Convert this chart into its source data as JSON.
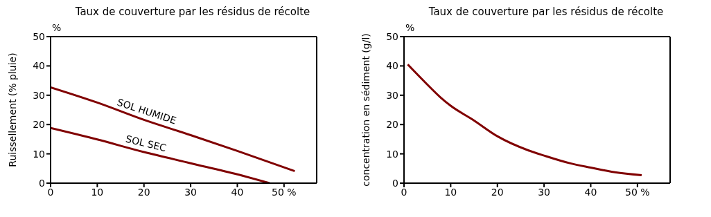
{
  "chart_data": [
    {
      "type": "line",
      "title": "Taux de couverture par les résidus de récolte",
      "ylabel": "Ruissellement (% pluie)",
      "annotations": [
        "%"
      ],
      "xlim": [
        0,
        57
      ],
      "xticks": [
        0,
        10,
        20,
        30,
        40,
        {
          "value": 50,
          "label": "50 %"
        }
      ],
      "ylim": [
        0,
        50
      ],
      "yticks": [
        0,
        10,
        20,
        30,
        40,
        50
      ],
      "series": [
        {
          "name": "SOL HUMIDE",
          "color": "#800000",
          "x": [
            0,
            10,
            20,
            30,
            40,
            52.3
          ],
          "values": [
            32.7,
            27.5,
            21.6,
            16.4,
            11,
            4.1
          ]
        },
        {
          "name": "SOL SEC",
          "color": "#800000",
          "x": [
            0,
            10,
            20,
            30,
            40,
            46.9
          ],
          "values": [
            18.8,
            14.9,
            10.6,
            6.8,
            3,
            0
          ]
        }
      ]
    },
    {
      "type": "line",
      "title": "Taux de couverture par les résidus de récolte",
      "ylabel": "concentration en sédiment (g/l)",
      "annotations": [
        "%"
      ],
      "xlim": [
        0,
        57
      ],
      "xticks": [
        0,
        10,
        20,
        30,
        40,
        {
          "value": 50,
          "label": "50 %"
        }
      ],
      "ylim": [
        0,
        50
      ],
      "yticks": [
        0,
        10,
        20,
        30,
        40,
        50
      ],
      "series": [
        {
          "color": "#800000",
          "x": [
            0.8,
            4.9,
            7.8,
            10,
            14.8,
            20,
            26.6,
            30,
            35.5,
            40,
            45.2,
            50.9
          ],
          "values": [
            40.5,
            33.8,
            29.3,
            26.4,
            21.6,
            16,
            11.2,
            9.4,
            6.8,
            5.3,
            3.7,
            2.7
          ]
        }
      ]
    }
  ]
}
